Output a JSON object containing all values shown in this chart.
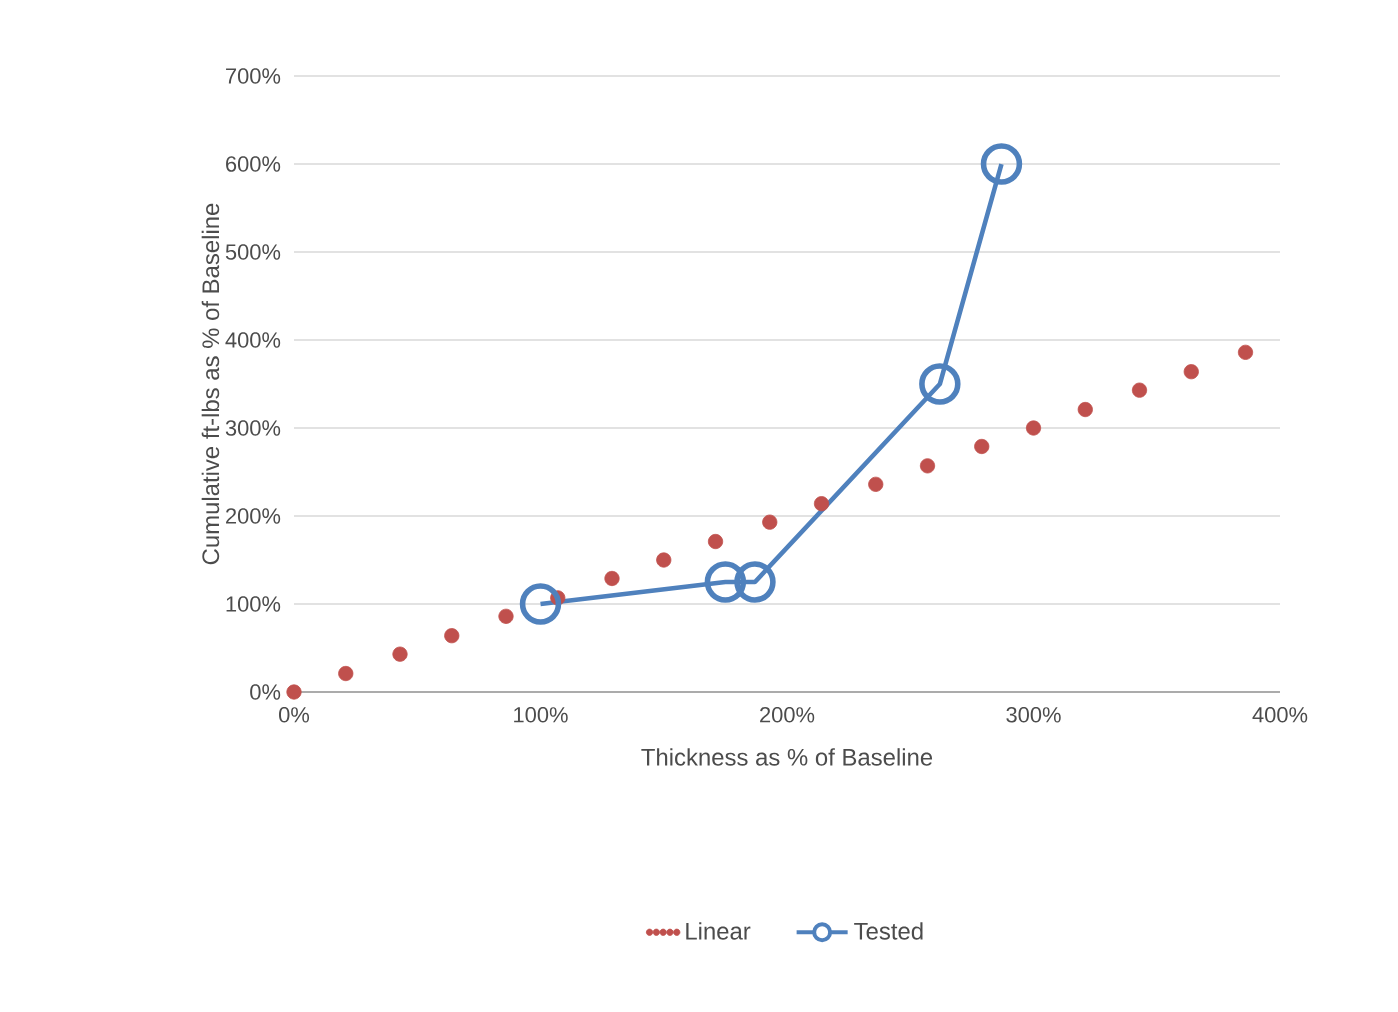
{
  "chart_data": {
    "type": "line",
    "xlabel": "Thickness as % of Baseline",
    "ylabel": "Cumulative ft-lbs as % of Baseline",
    "xlim": [
      0,
      400
    ],
    "ylim": [
      0,
      700
    ],
    "xticks": [
      {
        "value": 0,
        "label": "0%"
      },
      {
        "value": 100,
        "label": "100%"
      },
      {
        "value": 200,
        "label": "200%"
      },
      {
        "value": 300,
        "label": "300%"
      },
      {
        "value": 400,
        "label": "400%"
      }
    ],
    "yticks": [
      {
        "value": 0,
        "label": "0%"
      },
      {
        "value": 100,
        "label": "100%"
      },
      {
        "value": 200,
        "label": "200%"
      },
      {
        "value": 300,
        "label": "300%"
      },
      {
        "value": 400,
        "label": "400%"
      },
      {
        "value": 500,
        "label": "500%"
      },
      {
        "value": 600,
        "label": "600%"
      },
      {
        "value": 700,
        "label": "700%"
      }
    ],
    "grid": "y",
    "legend": "bottom",
    "series": [
      {
        "name": "Linear",
        "type": "scatter",
        "marker": "circle",
        "color": "#c0504d",
        "x": [
          0,
          21,
          43,
          64,
          86,
          107,
          129,
          150,
          171,
          193,
          214,
          236,
          257,
          279,
          300,
          321,
          343,
          364,
          386
        ],
        "values": [
          0,
          21,
          43,
          64,
          86,
          107,
          129,
          150,
          171,
          193,
          214,
          236,
          257,
          279,
          300,
          321,
          343,
          364,
          386
        ]
      },
      {
        "name": "Tested",
        "marker": "circle",
        "line_style": "solid",
        "color": "#4f81bd",
        "x": [
          100,
          175,
          187,
          262,
          287
        ],
        "values": [
          100,
          125,
          125,
          350,
          600
        ]
      }
    ]
  }
}
